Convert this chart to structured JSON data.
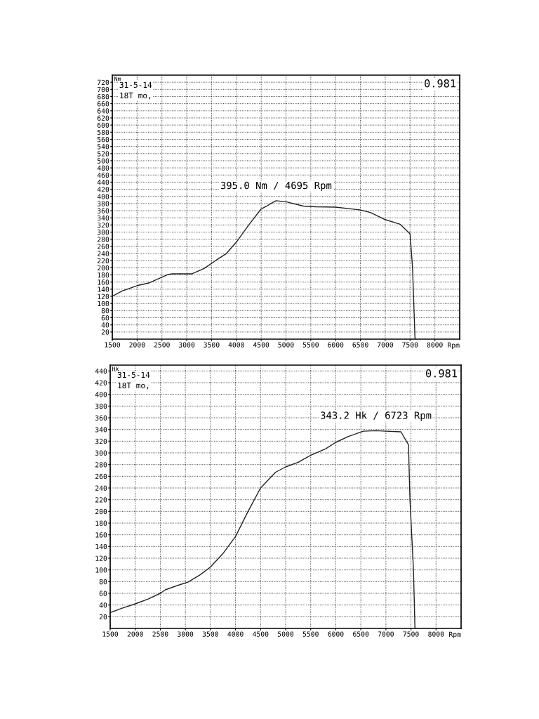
{
  "chart_data": [
    {
      "type": "line",
      "ylabel": "Nm",
      "xlabel": "Rpm",
      "subtitle": "0.981",
      "x": [
        1500,
        1700,
        2000,
        2250,
        2600,
        2700,
        3100,
        3350,
        3600,
        3800,
        4000,
        4250,
        4500,
        4600,
        4695,
        4800,
        5000,
        5350,
        5600,
        6000,
        6500,
        6700,
        7000,
        7300,
        7500,
        7550,
        7600
      ],
      "series": [
        {
          "color": "#222222",
          "values": [
            120,
            135,
            150,
            158,
            180,
            183,
            183,
            198,
            222,
            240,
            272,
            320,
            365,
            372,
            380,
            388,
            385,
            373,
            371,
            370,
            362,
            355,
            335,
            322,
            295,
            200,
            0
          ]
        }
      ],
      "xlim": [
        1500,
        8500
      ],
      "xticks": [
        1500,
        2000,
        2500,
        3000,
        3500,
        4000,
        4500,
        5000,
        5500,
        6000,
        6500,
        7000,
        7500,
        8000
      ],
      "ylim": [
        0,
        740
      ],
      "yticks": [
        20,
        40,
        60,
        80,
        100,
        120,
        140,
        160,
        180,
        200,
        220,
        240,
        260,
        280,
        300,
        320,
        340,
        360,
        380,
        400,
        420,
        440,
        460,
        480,
        500,
        520,
        540,
        560,
        580,
        600,
        620,
        640,
        660,
        680,
        700,
        720
      ],
      "grid": true,
      "line_style": "solid",
      "marker": "none",
      "annotations": [
        "31-5-14",
        "18T mo,",
        "395.0 Nm / 4695 Rpm"
      ]
    },
    {
      "type": "line",
      "ylabel": "Hk",
      "xlabel": "Rpm",
      "subtitle": "0.981",
      "x": [
        1500,
        1750,
        2000,
        2250,
        2500,
        2600,
        2900,
        3050,
        3300,
        3500,
        3750,
        4000,
        4250,
        4500,
        4800,
        5000,
        5250,
        5500,
        5800,
        6000,
        6250,
        6550,
        6800,
        7000,
        7300,
        7450,
        7480,
        7550,
        7580
      ],
      "series": [
        {
          "color": "#222222",
          "values": [
            27,
            35,
            42,
            50,
            60,
            66,
            75,
            79,
            92,
            105,
            128,
            157,
            200,
            240,
            267,
            276,
            284,
            296,
            307,
            318,
            328,
            337,
            338,
            337,
            336,
            314,
            220,
            100,
            0
          ]
        }
      ],
      "xlim": [
        1500,
        8500
      ],
      "xticks": [
        1500,
        2000,
        2500,
        3000,
        3500,
        4000,
        4500,
        5000,
        5500,
        6000,
        6500,
        7000,
        7500,
        8000
      ],
      "ylim": [
        0,
        450
      ],
      "yticks": [
        20,
        40,
        60,
        80,
        100,
        120,
        140,
        160,
        180,
        200,
        220,
        240,
        260,
        280,
        300,
        320,
        340,
        360,
        380,
        400,
        420,
        440
      ],
      "grid": true,
      "line_style": "solid",
      "marker": "none",
      "annotations": [
        "31-5-14",
        "18T mo,",
        "343.2 Hk / 6723 Rpm"
      ]
    }
  ]
}
